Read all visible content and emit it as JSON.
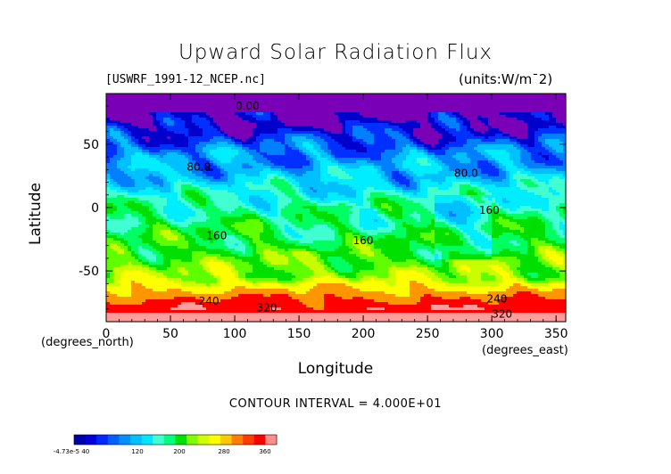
{
  "title": "Upward Solar Radiation Flux",
  "file_label": "[USWRF_1991-12_NCEP.nc]",
  "units_label": "(units:W/m^2)",
  "xlabel": "Longitude",
  "ylabel": "Latitude",
  "x_unit": "(degrees_east)",
  "y_unit": "(degrees_north)",
  "contour_interval": "CONTOUR INTERVAL = 4.000E+01",
  "chart_data": {
    "type": "heatmap",
    "title": "Upward Solar Radiation Flux",
    "xlabel": "Longitude",
    "ylabel": "Latitude",
    "xlim": [
      0,
      357.5
    ],
    "ylim": [
      -90,
      90
    ],
    "x_ticks": [
      0,
      50,
      100,
      150,
      200,
      250,
      300,
      350
    ],
    "y_ticks": [
      50,
      0,
      -50
    ],
    "contour_labels": [
      {
        "text": "0.00",
        "x": 110,
        "y": 80
      },
      {
        "text": "80.0",
        "x": 72,
        "y": 32
      },
      {
        "text": "80.0",
        "x": 280,
        "y": 27
      },
      {
        "text": "160",
        "x": 298,
        "y": -2
      },
      {
        "text": "160",
        "x": 86,
        "y": -22
      },
      {
        "text": "160",
        "x": 200,
        "y": -26
      },
      {
        "text": "240",
        "x": 80,
        "y": -74
      },
      {
        "text": "320",
        "x": 125,
        "y": -79
      },
      {
        "text": "240",
        "x": 304,
        "y": -72
      },
      {
        "text": "320",
        "x": 308,
        "y": -84
      }
    ],
    "color_levels": [
      "-4.73e-5",
      "40",
      "120",
      "200",
      "280",
      "360"
    ],
    "approx_zonal_profile": [
      {
        "lat": 90,
        "value": 0
      },
      {
        "lat": 65,
        "value": 25
      },
      {
        "lat": 45,
        "value": 70
      },
      {
        "lat": 25,
        "value": 95
      },
      {
        "lat": 0,
        "value": 140
      },
      {
        "lat": -25,
        "value": 165
      },
      {
        "lat": -55,
        "value": 200
      },
      {
        "lat": -70,
        "value": 290
      },
      {
        "lat": -82,
        "value": 340
      },
      {
        "lat": -90,
        "value": 380
      }
    ]
  },
  "colorbar": {
    "colors": [
      "#0000aa",
      "#0000dd",
      "#0028ff",
      "#0060ff",
      "#0090ff",
      "#00c0ff",
      "#00e6ff",
      "#40ffd0",
      "#00ff80",
      "#00e000",
      "#80ff00",
      "#d0ff00",
      "#ffff00",
      "#ffc800",
      "#ff8000",
      "#ff3c00",
      "#ff0000",
      "#ff8c8c"
    ],
    "labels": [
      "-4.73e-5 40",
      "120",
      "200",
      "280",
      "360"
    ]
  }
}
